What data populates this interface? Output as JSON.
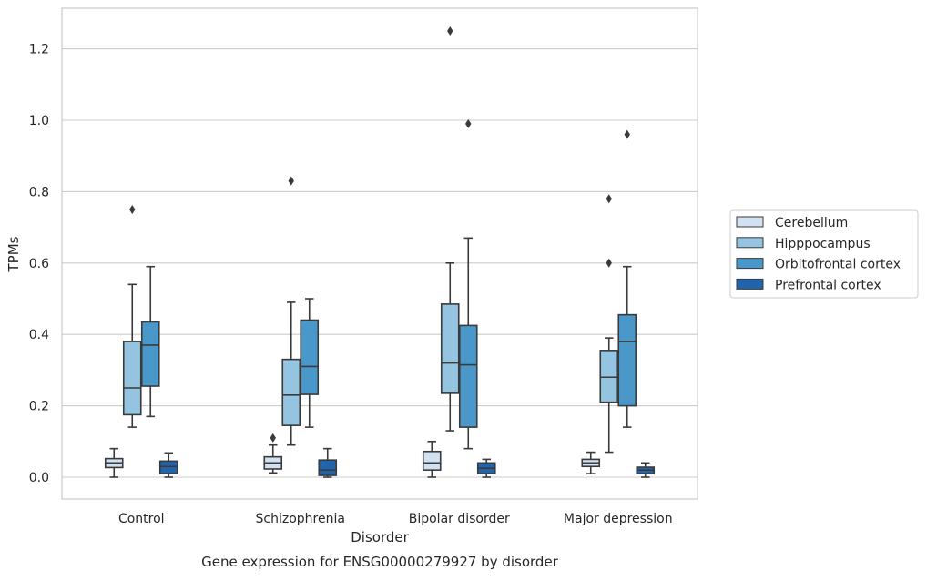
{
  "chart_data": {
    "type": "box",
    "title": "",
    "caption": "Gene expression for ENSG00000279927 by disorder",
    "xlabel": "Disorder",
    "ylabel": "TPMs",
    "categories": [
      "Control",
      "Schizophrenia",
      "Bipolar disorder",
      "Major depression"
    ],
    "yticks": [
      "0.0",
      "0.2",
      "0.4",
      "0.6",
      "0.8",
      "1.0",
      "1.2"
    ],
    "ylim": [
      -0.06,
      1.32
    ],
    "grid": "horizontal",
    "legend_position": "right",
    "series": [
      {
        "name": "Cerebellum",
        "color": "#d0e1f2",
        "boxes": [
          {
            "whisker_low": 0.0,
            "q1": 0.027,
            "median": 0.04,
            "q3": 0.052,
            "whisker_high": 0.08,
            "outliers": []
          },
          {
            "whisker_low": 0.012,
            "q1": 0.023,
            "median": 0.04,
            "q3": 0.057,
            "whisker_high": 0.09,
            "outliers": [
              0.11
            ]
          },
          {
            "whisker_low": 0.0,
            "q1": 0.02,
            "median": 0.04,
            "q3": 0.072,
            "whisker_high": 0.1,
            "outliers": []
          },
          {
            "whisker_low": 0.01,
            "q1": 0.03,
            "median": 0.04,
            "q3": 0.05,
            "whisker_high": 0.07,
            "outliers": []
          }
        ]
      },
      {
        "name": "Hipppocampus",
        "color": "#94c4df",
        "boxes": [
          {
            "whisker_low": 0.14,
            "q1": 0.175,
            "median": 0.25,
            "q3": 0.38,
            "whisker_high": 0.54,
            "outliers": [
              0.75
            ]
          },
          {
            "whisker_low": 0.09,
            "q1": 0.145,
            "median": 0.23,
            "q3": 0.33,
            "whisker_high": 0.49,
            "outliers": [
              0.83
            ]
          },
          {
            "whisker_low": 0.13,
            "q1": 0.235,
            "median": 0.32,
            "q3": 0.485,
            "whisker_high": 0.6,
            "outliers": [
              1.25
            ]
          },
          {
            "whisker_low": 0.07,
            "q1": 0.21,
            "median": 0.28,
            "q3": 0.355,
            "whisker_high": 0.39,
            "outliers": [
              0.6,
              0.78
            ]
          }
        ]
      },
      {
        "name": "Orbitofrontal cortex",
        "color": "#4a98c9",
        "boxes": [
          {
            "whisker_low": 0.17,
            "q1": 0.255,
            "median": 0.37,
            "q3": 0.435,
            "whisker_high": 0.59,
            "outliers": []
          },
          {
            "whisker_low": 0.14,
            "q1": 0.232,
            "median": 0.31,
            "q3": 0.44,
            "whisker_high": 0.5,
            "outliers": []
          },
          {
            "whisker_low": 0.08,
            "q1": 0.14,
            "median": 0.315,
            "q3": 0.425,
            "whisker_high": 0.67,
            "outliers": [
              0.99
            ]
          },
          {
            "whisker_low": 0.14,
            "q1": 0.2,
            "median": 0.38,
            "q3": 0.455,
            "whisker_high": 0.59,
            "outliers": [
              0.96
            ]
          }
        ]
      },
      {
        "name": "Prefrontal cortex",
        "color": "#2164ab",
        "boxes": [
          {
            "whisker_low": 0.0,
            "q1": 0.01,
            "median": 0.03,
            "q3": 0.045,
            "whisker_high": 0.068,
            "outliers": []
          },
          {
            "whisker_low": 0.0,
            "q1": 0.005,
            "median": 0.02,
            "q3": 0.048,
            "whisker_high": 0.08,
            "outliers": []
          },
          {
            "whisker_low": 0.0,
            "q1": 0.01,
            "median": 0.025,
            "q3": 0.04,
            "whisker_high": 0.05,
            "outliers": []
          },
          {
            "whisker_low": 0.0,
            "q1": 0.01,
            "median": 0.02,
            "q3": 0.028,
            "whisker_high": 0.04,
            "outliers": []
          }
        ]
      }
    ]
  }
}
